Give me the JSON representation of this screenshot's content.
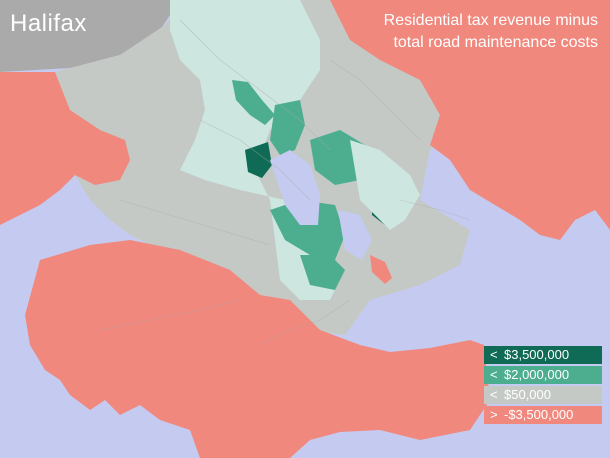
{
  "map": {
    "city": "Halifax",
    "title_line1": "Residential tax revenue minus",
    "title_line2": "total road maintenance costs",
    "colors": {
      "water": "#c5cbf0",
      "roads_overlay": "#a8a8a8"
    },
    "legend": [
      {
        "sign": "<",
        "label": "$3,500,000",
        "color": "#0f6b55"
      },
      {
        "sign": "<",
        "label": "$2,000,000",
        "color": "#4cae8f"
      },
      {
        "sign": "<",
        "label": "$50,000",
        "color": "#c4c9c6"
      },
      {
        "sign": ">",
        "label": "-$3,500,000",
        "color": "#f0887e"
      }
    ]
  }
}
